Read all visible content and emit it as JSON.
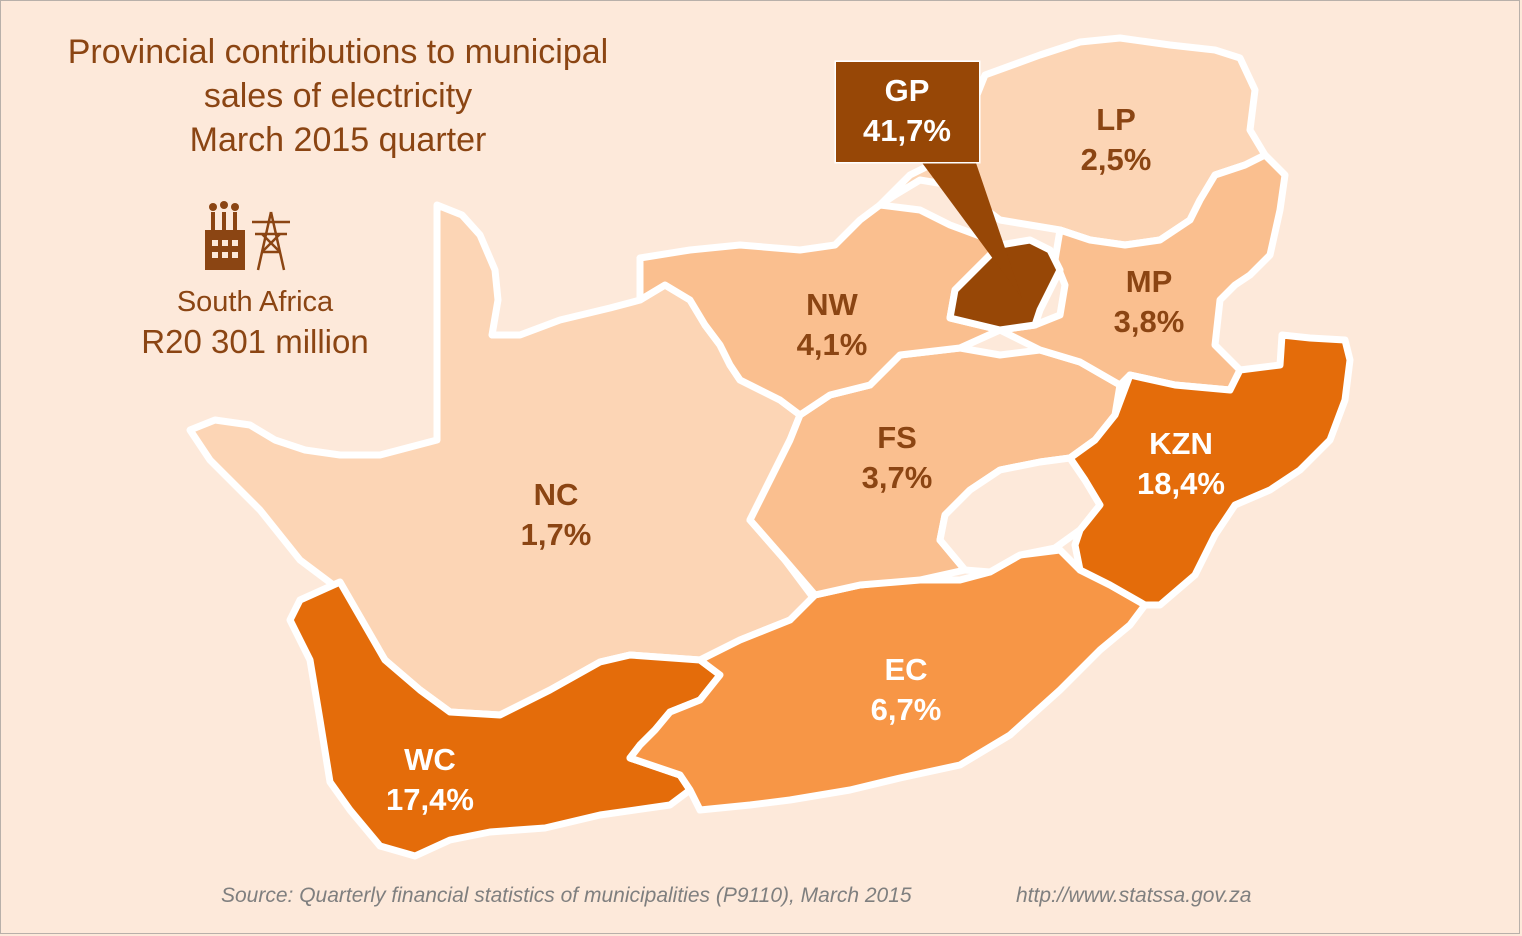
{
  "title": {
    "line1": "Provincial contributions to municipal",
    "line2": "sales of electricity",
    "line3": "March 2015 quarter"
  },
  "icons": [
    "factory-icon",
    "transmission-tower-icon"
  ],
  "country": {
    "name": "South Africa",
    "total": "R20 301 million"
  },
  "provinces": {
    "gp": {
      "code": "GP",
      "share": "41,7%",
      "color": "#974706"
    },
    "lp": {
      "code": "LP",
      "share": "2,5%",
      "color": "#fcd5b5"
    },
    "mp": {
      "code": "MP",
      "share": "3,8%",
      "color": "#fabf8f"
    },
    "nw": {
      "code": "NW",
      "share": "4,1%",
      "color": "#fabf8f"
    },
    "fs": {
      "code": "FS",
      "share": "3,7%",
      "color": "#fabf8f"
    },
    "kzn": {
      "code": "KZN",
      "share": "18,4%",
      "color": "#e46c0a"
    },
    "nc": {
      "code": "NC",
      "share": "1,7%",
      "color": "#fcd5b5"
    },
    "ec": {
      "code": "EC",
      "share": "6,7%",
      "color": "#f79646"
    },
    "wc": {
      "code": "WC",
      "share": "17,4%",
      "color": "#e46c0a"
    }
  },
  "lesotho_color": "#fde9da",
  "footer": {
    "source": "Source: Quarterly financial statistics of municipalities (P9110), March 2015",
    "url": "http://www.statssa.gov.za"
  }
}
